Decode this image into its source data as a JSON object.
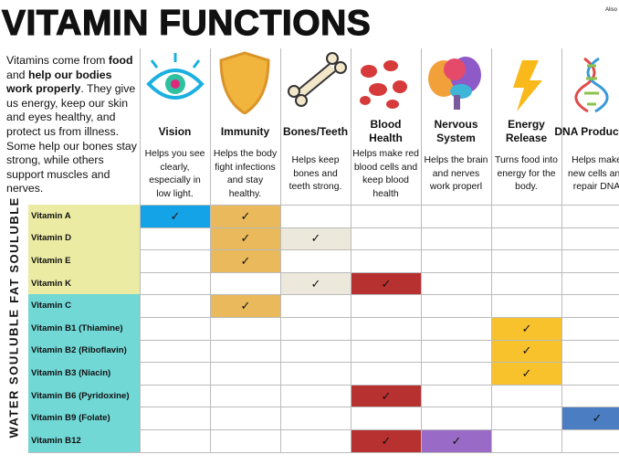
{
  "header": {
    "title": "VITAMIN FUNCTIONS",
    "author": "Aliso"
  },
  "intro": [
    {
      "text": "Vitamins come from "
    },
    {
      "text": "food",
      "bold": true
    },
    {
      "text": " and "
    },
    {
      "text": "help our bodies work properly",
      "bold": true
    },
    {
      "text": ". They give us energy, keep our skin and eyes healthy, and protect us from illness. Some help our bones stay strong, while others support muscles and nerves."
    }
  ],
  "columns": [
    {
      "name": "Vision",
      "description": "Helps you see clearly, especially in low light.",
      "color": "#14a3e6"
    },
    {
      "name": "Immunity",
      "description": "Helps the body fight infections and stay healthy.",
      "color": "#e9b95c"
    },
    {
      "name": "Bones/Teeth",
      "description": "Helps keep bones and teeth strong.",
      "color": "#ece8dc"
    },
    {
      "name": "Blood Health",
      "description": "Helps make red blood cells and keep blood health",
      "color": "#b83131"
    },
    {
      "name": "Nervous System",
      "description": "Helps the brain and nerves work properl",
      "color": "#9a6bc6"
    },
    {
      "name": "Energy Release",
      "description": "Turns food into energy for the body.",
      "color": "#f8c22c"
    },
    {
      "name": "DNA Production",
      "description": "Helps make new cells and repair DNA",
      "color": "#4a7dc1"
    }
  ],
  "groups": [
    {
      "label": "FAT SOULUBLE",
      "color": "#ebeba3",
      "rows": [
        {
          "label": "Vitamin A",
          "cells": [
            "✓",
            "✓",
            null,
            null,
            null,
            null,
            null
          ]
        },
        {
          "label": "Vitamin D",
          "cells": [
            null,
            "✓",
            "✓",
            null,
            null,
            null,
            null
          ]
        },
        {
          "label": "Vitamin E",
          "cells": [
            null,
            "✓",
            null,
            null,
            null,
            null,
            null
          ]
        },
        {
          "label": "Vitamin K",
          "cells": [
            null,
            null,
            "✓",
            "✓",
            null,
            null,
            null
          ]
        }
      ]
    },
    {
      "label": "WATER SOULUBLE",
      "color": "#71d8d6",
      "rows": [
        {
          "label": "Vitamin C",
          "cells": [
            null,
            "✓",
            null,
            null,
            null,
            null,
            null
          ]
        },
        {
          "label": "Vitamin B1 (Thiamine)",
          "cells": [
            null,
            null,
            null,
            null,
            null,
            "✓",
            null
          ]
        },
        {
          "label": "Vitamin B2 (Riboflavin)",
          "cells": [
            null,
            null,
            null,
            null,
            null,
            "✓",
            null
          ]
        },
        {
          "label": "Vitamin B3 (Niacin)",
          "cells": [
            null,
            null,
            null,
            null,
            null,
            "✓",
            null
          ]
        },
        {
          "label": "Vitamin B6 (Pyridoxine)",
          "cells": [
            null,
            null,
            null,
            "✓",
            null,
            null,
            null
          ]
        },
        {
          "label": "Vitamin B9 (Folate)",
          "cells": [
            null,
            null,
            null,
            null,
            null,
            null,
            "✓"
          ]
        },
        {
          "label": "Vitamin B12",
          "cells": [
            null,
            null,
            null,
            "✓",
            "✓",
            null,
            null
          ]
        }
      ]
    }
  ]
}
